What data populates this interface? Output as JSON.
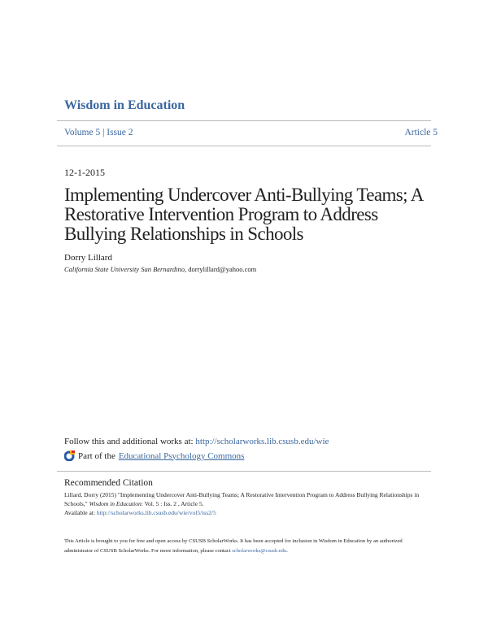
{
  "header": {
    "journal": "Wisdom in Education",
    "volume_issue": "Volume 5 | Issue 2",
    "article": "Article 5"
  },
  "date": "12-1-2015",
  "title": "Implementing Undercover Anti-Bullying Teams; A Restorative Intervention Program to Address Bullying Relationships in Schools",
  "author": {
    "name": "Dorry Lillard",
    "affiliation": "California State University San Bernardino",
    "email": ", dorrylillard@yahoo.com"
  },
  "follow": {
    "label": "Follow this and additional works at: ",
    "link": "http://scholarworks.lib.csusb.edu/wie"
  },
  "part_of": {
    "label": "Part of the ",
    "link": "Educational Psychology Commons",
    "icon": "bepress-commons-icon"
  },
  "citation": {
    "heading": "Recommended Citation",
    "text": "Lillard, Dorry (2015) \"Implementing Undercover Anti-Bullying Teams; A Restorative Intervention Program to Address Bullying Relationships in Schools,\" ",
    "journal": "Wisdom in Education",
    "rest": ": Vol. 5 : Iss. 2 , Article 5.",
    "available_label": "Available at: ",
    "available_link": "http://scholarworks.lib.csusb.edu/wie/vol5/iss2/5"
  },
  "footer": {
    "text": "This Article is brought to you for free and open access by CSUSB ScholarWorks. It has been accepted for inclusion in Wisdom in Education by an authorized administrator of CSUSB ScholarWorks. For more information, please contact ",
    "email": "scholarworks@csusb.edu",
    "end": "."
  },
  "colors": {
    "link": "#3b67a0",
    "rule": "#bbbbbb"
  }
}
